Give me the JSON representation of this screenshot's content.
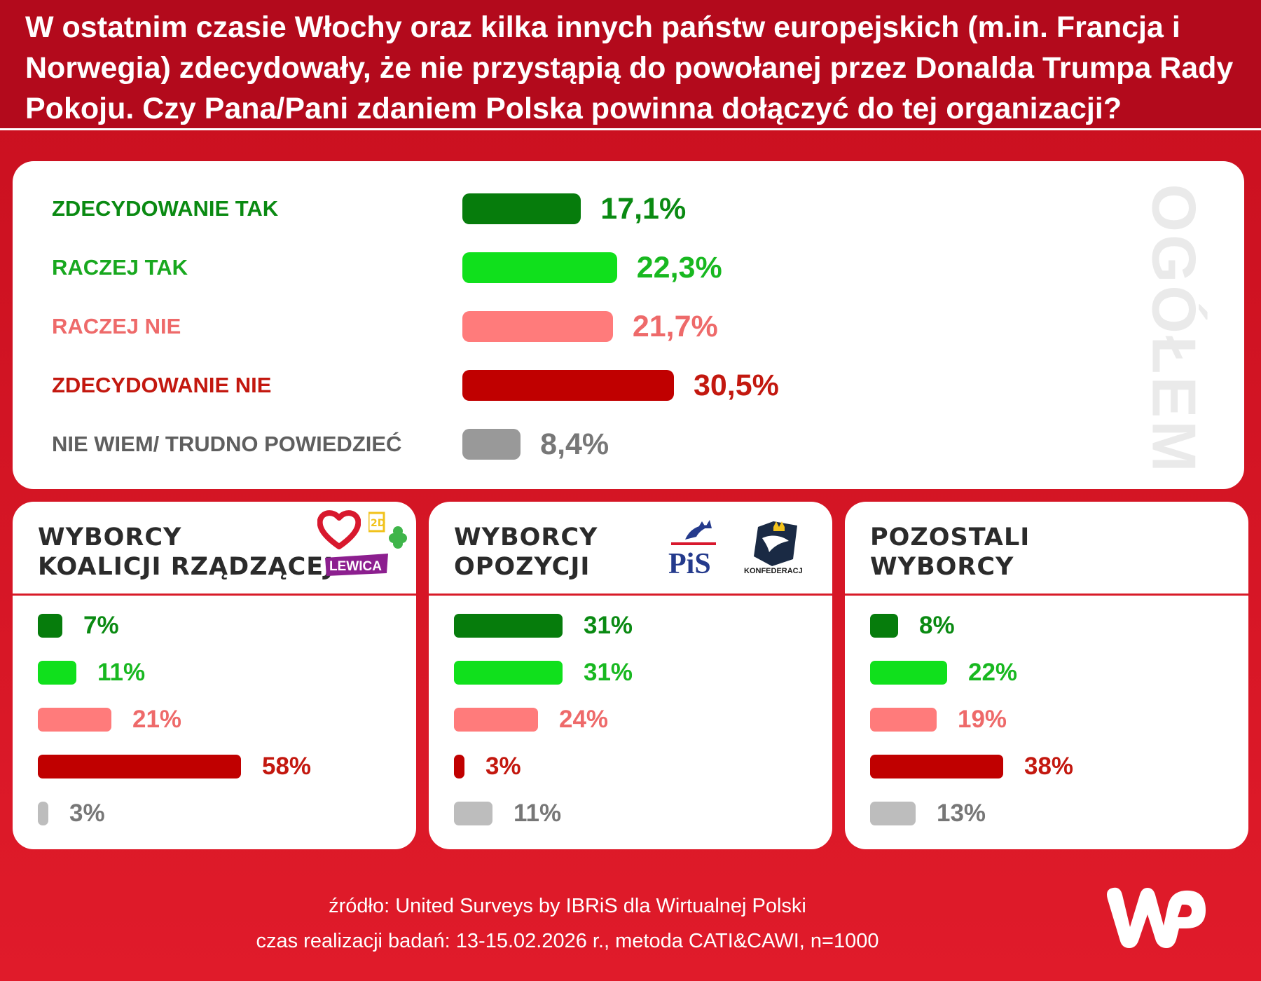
{
  "question": "W ostatnim czasie Włochy oraz kilka innych państw europejskich (m.in. Francja i Norwegia) zdecydowały, że nie przystąpią do powołanej przez Donalda Trumpa Rady Pokoju. Czy Pana/Pani zdaniem Polska powinna dołączyć do tej organizacji?",
  "side_label": "OGÓŁEM",
  "colors": {
    "zdecydowanie_tak": "#067c0c",
    "raczej_tak": "#10e01c",
    "raczej_nie": "#ff7b7b",
    "zdecydowanie_nie": "#c00000",
    "nie_wiem": "#999999",
    "nie_wiem_light": "#bdbdbd",
    "background": "#d81b28"
  },
  "chart_data": [
    {
      "type": "bar",
      "orientation": "horizontal",
      "group": "OGÓŁEM",
      "categories": [
        "ZDECYDOWANIE TAK",
        "RACZEJ TAK",
        "RACZEJ NIE",
        "ZDECYDOWANIE NIE",
        "NIE WIEM/ TRUDNO POWIEDZIEĆ"
      ],
      "values": [
        17.1,
        22.3,
        21.7,
        30.5,
        8.4
      ],
      "labels": [
        "17,1%",
        "22,3%",
        "21,7%",
        "30,5%",
        "8,4%"
      ],
      "unit": "%",
      "grid": false
    },
    {
      "type": "bar",
      "orientation": "horizontal",
      "group": "WYBORCY\nKOALICJI RZĄDZĄCEJ",
      "categories": [
        "ZDECYDOWANIE TAK",
        "RACZEJ TAK",
        "RACZEJ NIE",
        "ZDECYDOWANIE NIE",
        "NIE WIEM/ TRUDNO POWIEDZIEĆ"
      ],
      "values": [
        7,
        11,
        21,
        58,
        3
      ],
      "labels": [
        "7%",
        "11%",
        "21%",
        "58%",
        "3%"
      ],
      "unit": "%",
      "logos": [
        "heart-logo",
        "trzecia-droga-logo",
        "lewica-logo"
      ],
      "logo_text": "LEWICA"
    },
    {
      "type": "bar",
      "orientation": "horizontal",
      "group": "WYBORCY\nOPOZYCJI",
      "categories": [
        "ZDECYDOWANIE TAK",
        "RACZEJ TAK",
        "RACZEJ NIE",
        "ZDECYDOWANIE NIE",
        "NIE WIEM/ TRUDNO POWIEDZIEĆ"
      ],
      "values": [
        31,
        31,
        24,
        3,
        11
      ],
      "labels": [
        "31%",
        "31%",
        "24%",
        "3%",
        "11%"
      ],
      "unit": "%",
      "logos": [
        "pis-logo",
        "konfederacja-logo"
      ],
      "logo_text": "PiS",
      "logo_text_2": "KONFEDERACJA"
    },
    {
      "type": "bar",
      "orientation": "horizontal",
      "group": "POZOSTALI\nWYBORCY",
      "categories": [
        "ZDECYDOWANIE TAK",
        "RACZEJ TAK",
        "RACZEJ NIE",
        "ZDECYDOWANIE NIE",
        "NIE WIEM/ TRUDNO POWIEDZIEĆ"
      ],
      "values": [
        8,
        22,
        19,
        38,
        13
      ],
      "labels": [
        "8%",
        "22%",
        "19%",
        "38%",
        "13%"
      ],
      "unit": "%",
      "logos": []
    }
  ],
  "footer": {
    "source": "źródło: United Surveys by IBRiS dla Wirtualnej Polski",
    "method": "czas realizacji badań: 13-15.02.2026 r., metoda CATI&CAWI, n=1000"
  },
  "brand_logo": "wp-logo"
}
